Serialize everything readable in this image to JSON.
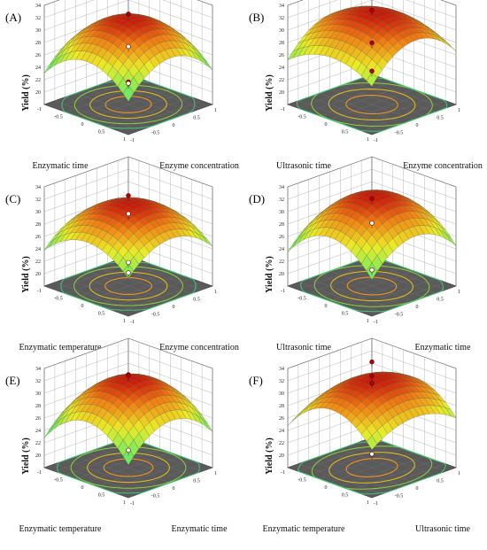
{
  "chart_data": [
    {
      "type": "surface3d",
      "panel_label": "(A)",
      "xlabel": "Enzymatic time",
      "ylabel": "Enzyme concentration",
      "zlabel": "Yield (%)",
      "z_ticks": [
        20,
        22,
        24,
        26,
        28,
        30,
        32,
        34
      ],
      "x_ticks": [
        1,
        0.5,
        0,
        -0.5,
        -1
      ],
      "y_ticks": [
        -1,
        -0.5,
        0,
        0.5,
        1
      ],
      "zlim": [
        20,
        34
      ],
      "surface": {
        "peak": 32.0,
        "ax": 4.2,
        "ay": 4.5,
        "bx": 0.2,
        "by": 0.3
      },
      "design_points": [
        {
          "x": 0,
          "y": 0,
          "z": 32.6,
          "above": true
        },
        {
          "x": 1,
          "y": -1,
          "z": 26.5,
          "above": true
        },
        {
          "x": 0,
          "y": 0,
          "z": 21.4,
          "above": false
        },
        {
          "x": -1,
          "y": 1,
          "z": 22.5,
          "above": false
        }
      ]
    },
    {
      "type": "surface3d",
      "panel_label": "(B)",
      "xlabel": "Ultrasonic time",
      "ylabel": "Enzyme concentration",
      "zlabel": "Yield (%)",
      "z_ticks": [
        20,
        22,
        24,
        26,
        28,
        30,
        32,
        34
      ],
      "x_ticks": [
        1,
        0.5,
        0,
        -0.5,
        -1
      ],
      "y_ticks": [
        -1,
        -0.5,
        0,
        0.5,
        1
      ],
      "zlim": [
        20,
        34
      ],
      "surface": {
        "peak": 33.0,
        "ax": 2.6,
        "ay": 4.5,
        "bx": 0.8,
        "by": 0.6
      },
      "design_points": [
        {
          "x": 0,
          "y": 0,
          "z": 33.2,
          "above": true
        },
        {
          "x": 0,
          "y": 0,
          "z": 23.4,
          "above": true
        },
        {
          "x": -1,
          "y": 1,
          "z": 23.1,
          "above": true
        }
      ]
    },
    {
      "type": "surface3d",
      "panel_label": "(C)",
      "xlabel": "Enzymatic temperature",
      "ylabel": "Enzyme concentration",
      "zlabel": "Yield (%)",
      "z_ticks": [
        20,
        22,
        24,
        26,
        28,
        30,
        32,
        34
      ],
      "x_ticks": [
        1,
        0.5,
        0,
        -0.5,
        -1
      ],
      "y_ticks": [
        -1,
        -0.5,
        0,
        0.5,
        1
      ],
      "zlim": [
        20,
        34
      ],
      "surface": {
        "peak": 31.5,
        "ax": 3.6,
        "ay": 3.8,
        "bx": 0.3,
        "by": 0.3
      },
      "design_points": [
        {
          "x": 0,
          "y": 0,
          "z": 32.6,
          "above": true
        },
        {
          "x": 1,
          "y": -1,
          "z": 25.0,
          "above": false
        },
        {
          "x": 0,
          "y": 0,
          "z": 21.8,
          "above": false
        },
        {
          "x": -1,
          "y": 1,
          "z": 24.8,
          "above": false
        }
      ]
    },
    {
      "type": "surface3d",
      "panel_label": "(D)",
      "xlabel": "Ultrasonic time",
      "ylabel": "Enzymatic time",
      "zlabel": "Yield (%)",
      "z_ticks": [
        20,
        22,
        24,
        26,
        28,
        30,
        32,
        34
      ],
      "x_ticks": [
        1,
        0.5,
        0,
        -0.5,
        -1
      ],
      "y_ticks": [
        -1,
        -0.5,
        0,
        0.5,
        1
      ],
      "zlim": [
        20,
        34
      ],
      "surface": {
        "peak": 32.8,
        "ax": 4.6,
        "ay": 4.2,
        "bx": 0.6,
        "by": 0.4
      },
      "design_points": [
        {
          "x": 0,
          "y": 0,
          "z": 32.1,
          "above": true
        },
        {
          "x": -1,
          "y": 1,
          "z": 23.3,
          "above": false
        },
        {
          "x": 0,
          "y": 0,
          "z": 20.6,
          "above": false
        }
      ]
    },
    {
      "type": "surface3d",
      "panel_label": "(E)",
      "xlabel": "Enzymatic temperature",
      "ylabel": "Enzymatic time",
      "zlabel": "Yield (%)",
      "z_ticks": [
        20,
        22,
        24,
        26,
        28,
        30,
        32,
        34
      ],
      "x_ticks": [
        1,
        0.5,
        0,
        -0.5,
        -1
      ],
      "y_ticks": [
        -1,
        -0.5,
        0,
        0.5,
        1
      ],
      "zlim": [
        20,
        34
      ],
      "surface": {
        "peak": 32.5,
        "ax": 4.8,
        "ay": 4.4,
        "bx": 0.5,
        "by": 0.5
      },
      "design_points": [
        {
          "x": 0,
          "y": 0,
          "z": 33.0,
          "above": true
        },
        {
          "x": -1,
          "y": 1,
          "z": 28.0,
          "above": true
        },
        {
          "x": 0,
          "y": 0,
          "z": 20.8,
          "above": false
        }
      ]
    },
    {
      "type": "surface3d",
      "panel_label": "(F)",
      "xlabel": "Enzymatic temperature",
      "ylabel": "Ultrasonic time",
      "zlabel": "Yield (%)",
      "z_ticks": [
        20,
        22,
        24,
        26,
        28,
        30,
        32,
        34
      ],
      "x_ticks": [
        1,
        0.5,
        0,
        -0.5,
        -1
      ],
      "y_ticks": [
        -1,
        -0.5,
        0,
        0.5,
        1
      ],
      "zlim": [
        20,
        34
      ],
      "surface": {
        "peak": 32.6,
        "ax": 4.6,
        "ay": 2.6,
        "bx": 0.3,
        "by": 1.0
      },
      "design_points": [
        {
          "x": 0,
          "y": 0,
          "z": 32.8,
          "above": true
        },
        {
          "x": 0,
          "y": 0,
          "z": 31.6,
          "above": true
        },
        {
          "x": -1,
          "y": 1,
          "z": 30.2,
          "above": true
        },
        {
          "x": 0,
          "y": 0,
          "z": 20.2,
          "above": false
        }
      ]
    }
  ]
}
